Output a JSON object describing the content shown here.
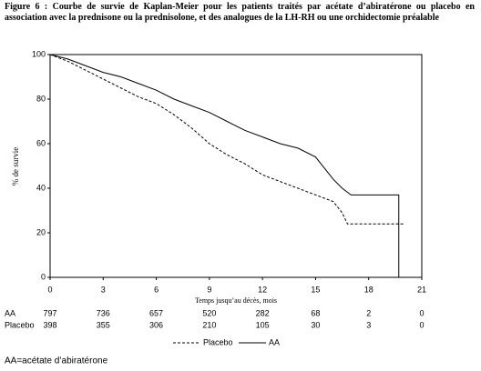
{
  "chart_data": {
    "type": "line",
    "title": "Figure 6 : Courbe de survie de Kaplan-Meier pour les patients traités par acétate d’abiratérone ou placebo en association avec la prednisone ou la prednisolone, et des analogues de la LH-RH ou une orchidectomie préalable",
    "x_label": "Temps jusqu’au décès, mois",
    "y_label": "% de survie",
    "xlim": [
      0,
      21
    ],
    "xticks": [
      0,
      3,
      6,
      9,
      12,
      15,
      18,
      21
    ],
    "ylim": [
      0,
      100
    ],
    "yticks": [
      0,
      20,
      40,
      60,
      80,
      100
    ],
    "series": [
      {
        "name": "Placebo",
        "color": "#000000",
        "dash": true,
        "x": [
          0,
          1,
          2,
          3,
          4,
          5,
          6,
          7,
          8,
          9,
          10,
          11,
          12,
          13,
          14,
          15,
          16,
          16.5,
          16.8,
          20
        ],
        "values": [
          100,
          97,
          93,
          89,
          85,
          81,
          78,
          73,
          67,
          60,
          55,
          51,
          46,
          43,
          40,
          37,
          34,
          29,
          24,
          24
        ]
      },
      {
        "name": "AA",
        "color": "#000000",
        "dash": false,
        "x": [
          0,
          1,
          2,
          3,
          4,
          5,
          6,
          7,
          8,
          9,
          10,
          11,
          12,
          13,
          14,
          15,
          15.5,
          16,
          16.5,
          17,
          19.7,
          19.7
        ],
        "values": [
          100,
          98,
          95,
          92,
          90,
          87,
          84,
          80,
          77,
          74,
          70,
          66,
          63,
          60,
          58,
          54,
          49,
          44,
          40,
          37,
          37,
          0
        ]
      }
    ],
    "risk_table": [
      {
        "label": "AA",
        "values": [
          797,
          736,
          657,
          520,
          282,
          68,
          2,
          0
        ]
      },
      {
        "label": "Placebo",
        "values": [
          398,
          355,
          306,
          210,
          105,
          30,
          3,
          0
        ]
      }
    ]
  },
  "footnote": "AA=acétate d’abiratérone"
}
